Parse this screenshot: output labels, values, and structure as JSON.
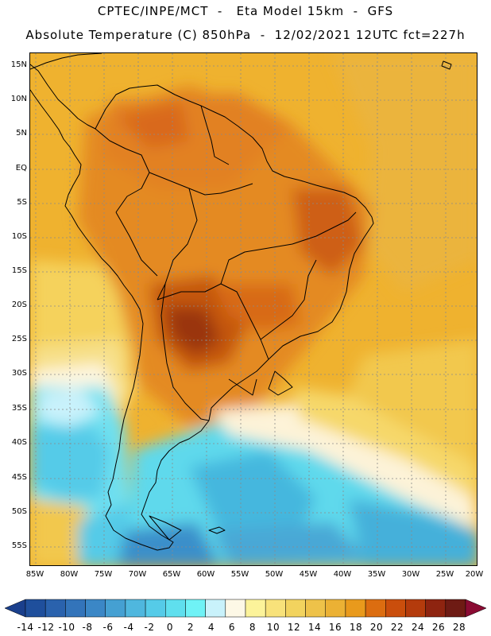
{
  "header": {
    "title_line1": "CPTEC/INPE/MCT  -   Eta Model 15km  -  GFS",
    "title_line2": "Absolute Temperature (C) 850hPa  -  12/02/2021 12UTC fct=227h"
  },
  "axes": {
    "lat_labels": [
      "15N",
      "10N",
      "5N",
      "EQ",
      "5S",
      "10S",
      "15S",
      "20S",
      "25S",
      "30S",
      "35S",
      "40S",
      "45S",
      "50S",
      "55S"
    ],
    "lon_labels": [
      "85W",
      "80W",
      "75W",
      "70W",
      "65W",
      "60W",
      "55W",
      "50W",
      "45W",
      "40W",
      "35W",
      "30W",
      "25W",
      "20W"
    ]
  },
  "colorbar": {
    "labels": [
      "-14",
      "-12",
      "-10",
      "-8",
      "-6",
      "-4",
      "-2",
      "0",
      "2",
      "4",
      "6",
      "8",
      "10",
      "12",
      "14",
      "16",
      "18",
      "20",
      "22",
      "24",
      "26",
      "28"
    ],
    "colors": [
      "#1a3f8c",
      "#1f4f9c",
      "#2a62ad",
      "#3374ba",
      "#3b87c6",
      "#45a0d2",
      "#4fb7de",
      "#55cbe8",
      "#5fdfee",
      "#6ff2f6",
      "#c9f2fb",
      "#fdf8e6",
      "#fcf39a",
      "#f8e27a",
      "#f2d35e",
      "#eec249",
      "#ebb134",
      "#e99a1c",
      "#dc6d10",
      "#ca4e0c",
      "#b43b0c",
      "#8e2410",
      "#6e1b14",
      "#8a0b33"
    ]
  },
  "palette": {
    "ocean_warm": "#efb22f",
    "land_hot": "#e58a1f",
    "hotspot": "#b8430c",
    "cold_south": "#5fd9ec",
    "coast": "#000000",
    "grid": "#777777"
  }
}
